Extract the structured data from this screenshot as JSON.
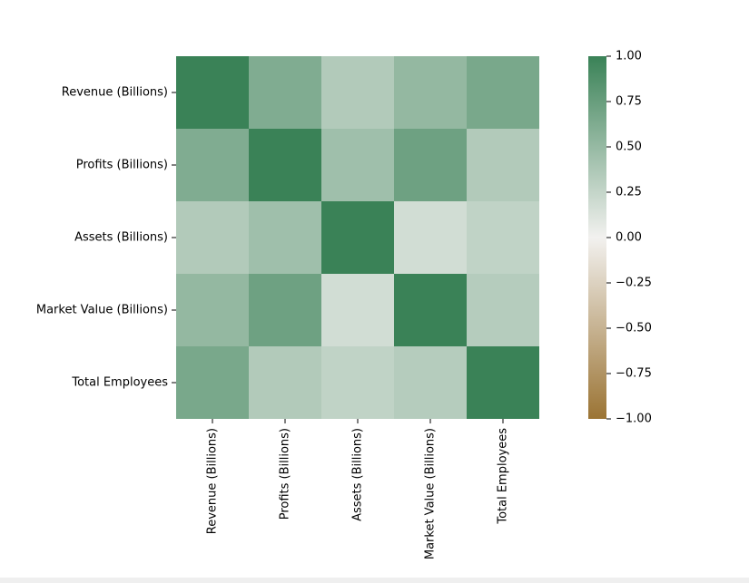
{
  "chart_data": {
    "type": "heatmap",
    "title": "",
    "xlabel": "",
    "ylabel": "",
    "row_labels": [
      "Revenue (Billions)",
      "Profits (Billions)",
      "Assets (Billions)",
      "Market Value (Billions)",
      "Total Employees"
    ],
    "col_labels": [
      "Revenue (Billions)",
      "Profits (Billions)",
      "Assets (Billions)",
      "Market Value (Billions)",
      "Total Employees"
    ],
    "values": [
      [
        1.0,
        0.62,
        0.35,
        0.51,
        0.66
      ],
      [
        0.62,
        1.0,
        0.45,
        0.72,
        0.35
      ],
      [
        0.35,
        0.45,
        1.0,
        0.18,
        0.27
      ],
      [
        0.51,
        0.72,
        0.18,
        1.0,
        0.33
      ],
      [
        0.66,
        0.35,
        0.27,
        0.33,
        1.0
      ]
    ],
    "colorbar": {
      "min": -1.0,
      "max": 1.0,
      "ticks": [
        "1.00",
        "0.75",
        "0.50",
        "0.25",
        "0.00",
        "−0.25",
        "−0.50",
        "−0.75",
        "−1.00"
      ],
      "low_color": "#9b7434",
      "mid_color": "#f2f1ef",
      "high_color": "#3a8257"
    }
  }
}
